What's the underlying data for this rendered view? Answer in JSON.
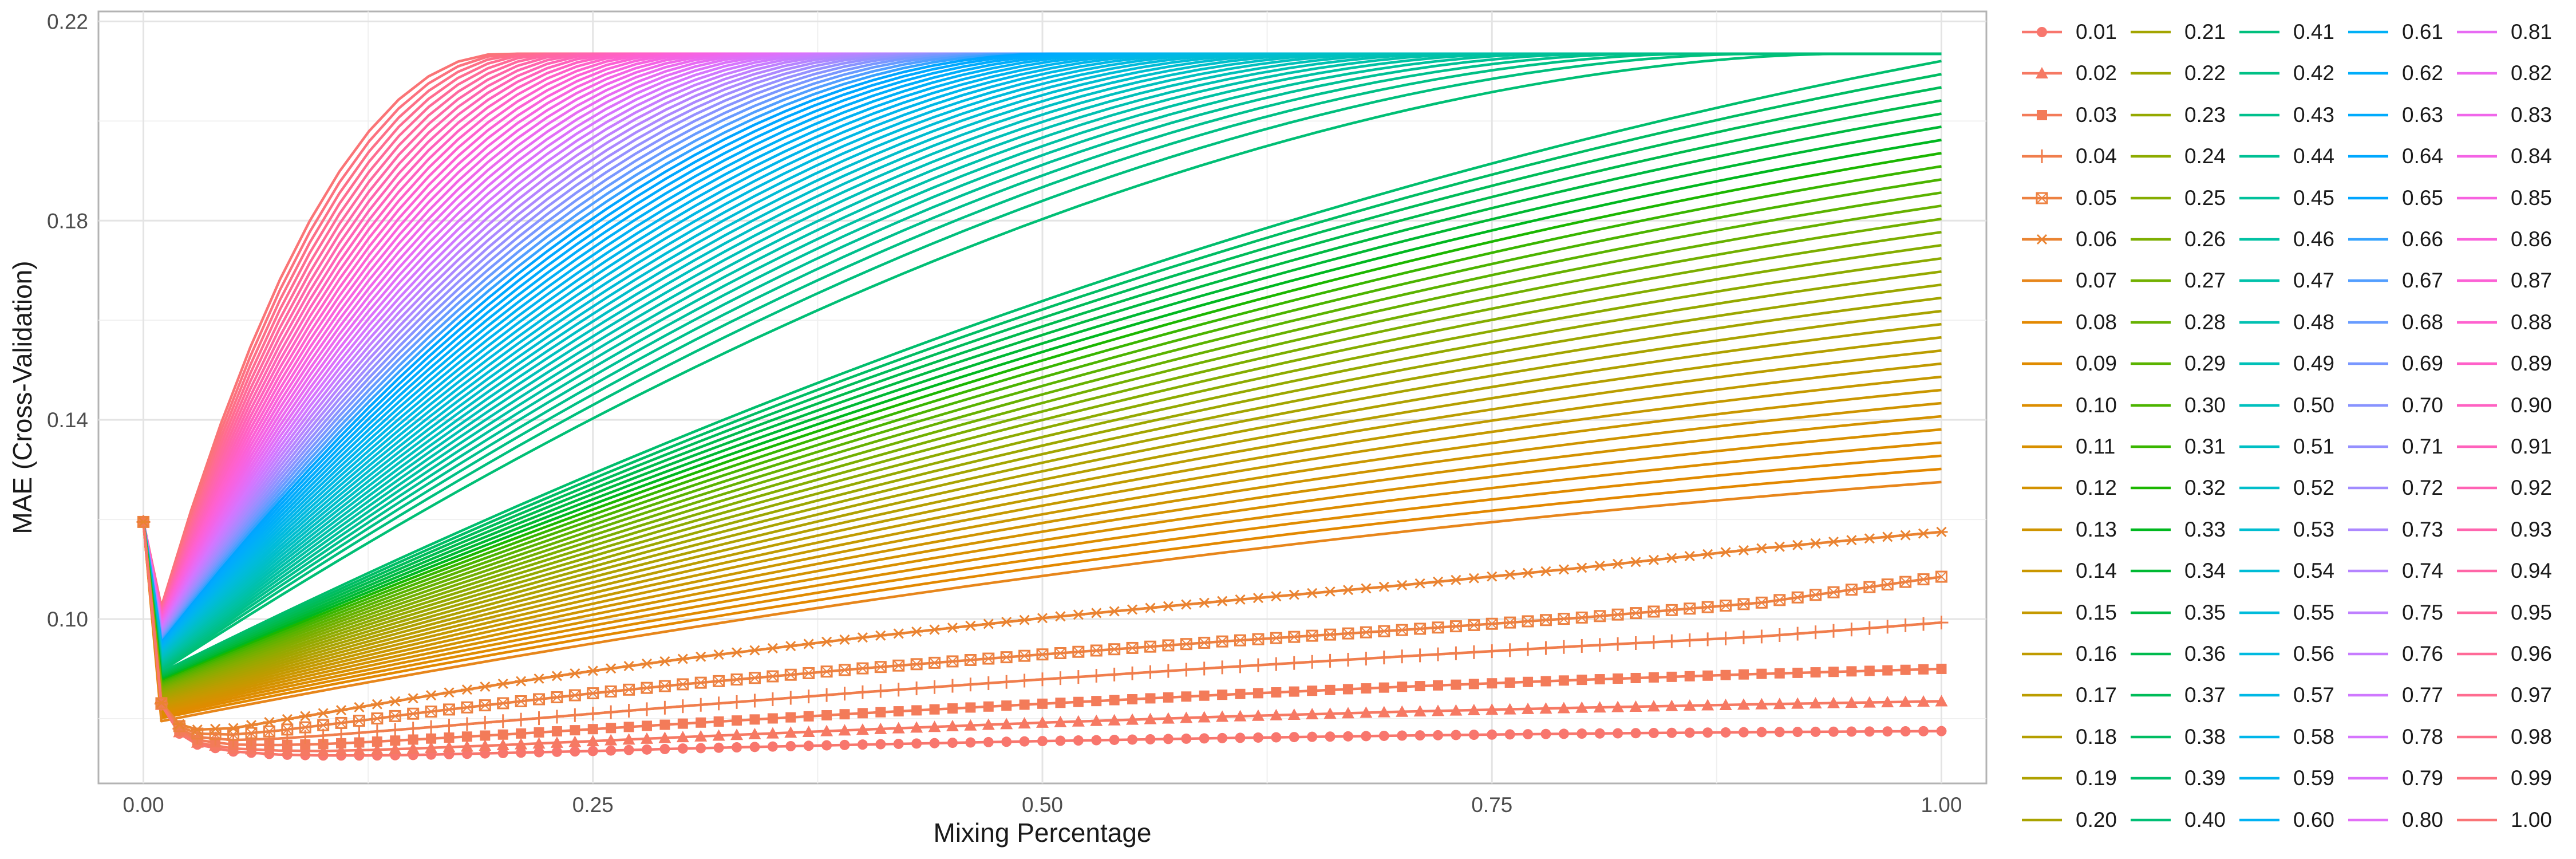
{
  "chart_data": {
    "type": "line",
    "title": "",
    "xlabel": "Mixing Percentage",
    "ylabel": "MAE (Cross-Validation)",
    "xlim": [
      -0.025,
      1.025
    ],
    "ylim": [
      0.067,
      0.222
    ],
    "x_ticks": [
      0.0,
      0.25,
      0.5,
      0.75,
      1.0
    ],
    "x_tick_labels": [
      "0.00",
      "0.25",
      "0.50",
      "0.75",
      "1.00"
    ],
    "y_ticks": [
      0.1,
      0.14,
      0.18,
      0.22
    ],
    "y_tick_labels": [
      "0.10",
      "0.14",
      "0.18",
      "0.22"
    ],
    "grid": true,
    "legend_position": "right",
    "legend_columns": 5,
    "marker_series": [
      "0.01",
      "0.02",
      "0.03",
      "0.04",
      "0.05",
      "0.06"
    ],
    "x": [
      0.0,
      0.01,
      0.02,
      0.03,
      0.05,
      0.075,
      0.1,
      0.125,
      0.15,
      0.2,
      0.25,
      0.3,
      0.4,
      0.5,
      0.6,
      0.7,
      0.8,
      0.9,
      1.0
    ],
    "series_values_note": "values in y data units, one per x",
    "series": [
      {
        "name": "0.01",
        "values": [
          0.1195,
          0.0828,
          0.077,
          0.0748,
          0.0734,
          0.0728,
          0.0726,
          0.0726,
          0.0727,
          0.0731,
          0.0735,
          0.074,
          0.0748,
          0.0755,
          0.0761,
          0.0766,
          0.077,
          0.0773,
          0.0775
        ]
      },
      {
        "name": "0.02",
        "values": [
          0.1195,
          0.0828,
          0.0773,
          0.0752,
          0.074,
          0.0736,
          0.0735,
          0.0737,
          0.074,
          0.0747,
          0.0755,
          0.0763,
          0.0778,
          0.0792,
          0.0804,
          0.0814,
          0.0822,
          0.0829,
          0.0835
        ]
      },
      {
        "name": "0.03",
        "values": [
          0.1195,
          0.0829,
          0.0776,
          0.0757,
          0.0748,
          0.0747,
          0.0749,
          0.0753,
          0.0758,
          0.0768,
          0.0779,
          0.079,
          0.0811,
          0.083,
          0.0848,
          0.0864,
          0.0878,
          0.089,
          0.09
        ]
      },
      {
        "name": "0.04",
        "values": [
          0.1195,
          0.083,
          0.078,
          0.0763,
          0.0757,
          0.076,
          0.0766,
          0.0773,
          0.078,
          0.0795,
          0.081,
          0.0825,
          0.0853,
          0.0879,
          0.0903,
          0.0925,
          0.0946,
          0.0965,
          0.0993
        ]
      },
      {
        "name": "0.05",
        "values": [
          0.1195,
          0.0831,
          0.0785,
          0.077,
          0.0768,
          0.0776,
          0.0787,
          0.0798,
          0.081,
          0.0831,
          0.0851,
          0.0869,
          0.0901,
          0.0929,
          0.0955,
          0.0978,
          0.1003,
          0.1033,
          0.1085
        ]
      },
      {
        "name": "0.06",
        "values": [
          0.1195,
          0.0832,
          0.0789,
          0.0778,
          0.0781,
          0.0796,
          0.0811,
          0.0826,
          0.0841,
          0.087,
          0.0896,
          0.092,
          0.0963,
          0.1002,
          0.1036,
          0.1068,
          0.1103,
          0.1142,
          0.1175
        ]
      }
    ],
    "legend_labels": [
      "0.01",
      "0.02",
      "0.03",
      "0.04",
      "0.05",
      "0.06",
      "0.07",
      "0.08",
      "0.09",
      "0.10",
      "0.11",
      "0.12",
      "0.13",
      "0.14",
      "0.15",
      "0.16",
      "0.17",
      "0.18",
      "0.19",
      "0.20",
      "0.21",
      "0.22",
      "0.23",
      "0.24",
      "0.25",
      "0.26",
      "0.27",
      "0.28",
      "0.29",
      "0.30",
      "0.31",
      "0.32",
      "0.33",
      "0.34",
      "0.35",
      "0.36",
      "0.37",
      "0.38",
      "0.39",
      "0.40",
      "0.41",
      "0.42",
      "0.43",
      "0.44",
      "0.45",
      "0.46",
      "0.47",
      "0.48",
      "0.49",
      "0.50",
      "0.51",
      "0.52",
      "0.53",
      "0.54",
      "0.55",
      "0.56",
      "0.57",
      "0.58",
      "0.59",
      "0.60",
      "0.61",
      "0.62",
      "0.63",
      "0.64",
      "0.65",
      "0.66",
      "0.67",
      "0.68",
      "0.69",
      "0.70",
      "0.71",
      "0.72",
      "0.73",
      "0.74",
      "0.75",
      "0.76",
      "0.77",
      "0.78",
      "0.79",
      "0.80",
      "0.81",
      "0.82",
      "0.83",
      "0.84",
      "0.85",
      "0.86",
      "0.87",
      "0.88",
      "0.89",
      "0.90",
      "0.91",
      "0.92",
      "0.93",
      "0.94",
      "0.95",
      "0.96",
      "0.97",
      "0.98",
      "0.99",
      "1.00"
    ],
    "additional_series_model": {
      "applies_to": "series 0.07 through 1.00 (curves generated from parameters)",
      "start_value": 0.1195,
      "plateau_value": 0.2135,
      "end_value_at_x1_for_0.07": 0.1275,
      "end_value_reaches_plateau_at": 0.35,
      "plateau_reached_x_for_1.00": 0.2,
      "min_dip_value_for_1.00": 0.1025
    },
    "palette_hue_start": 15,
    "palette_hue_end": 375,
    "palette_chroma": 100,
    "palette_luminance": 65
  }
}
